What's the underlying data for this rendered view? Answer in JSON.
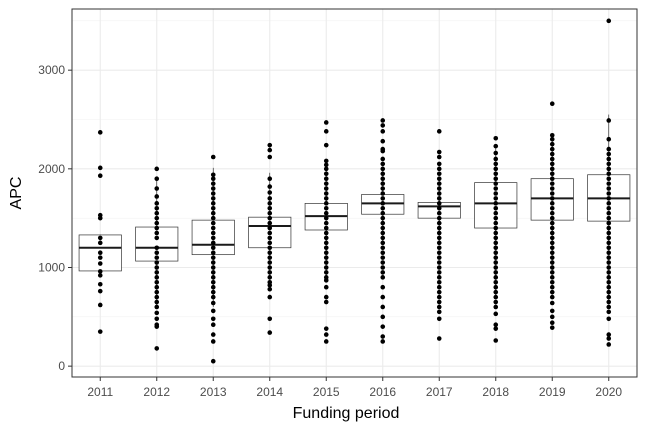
{
  "chart_data": {
    "type": "boxplot",
    "title": "",
    "xlabel": "Funding period",
    "ylabel": "APC",
    "categories": [
      "2011",
      "2012",
      "2013",
      "2014",
      "2015",
      "2016",
      "2017",
      "2018",
      "2019",
      "2020"
    ],
    "ylim": [
      -110,
      3620
    ],
    "yticks": [
      0,
      1000,
      2000,
      3000
    ],
    "grid": true,
    "legend": "none",
    "boxes": [
      {
        "category": "2011",
        "whisker_low": 960,
        "q1": 965,
        "median": 1200,
        "q3": 1330,
        "whisker_high": 1335
      },
      {
        "category": "2012",
        "whisker_low": 580,
        "q1": 1065,
        "median": 1200,
        "q3": 1410,
        "whisker_high": 1900
      },
      {
        "category": "2013",
        "whisker_low": 600,
        "q1": 1130,
        "median": 1230,
        "q3": 1480,
        "whisker_high": 2010
      },
      {
        "category": "2014",
        "whisker_low": 780,
        "q1": 1200,
        "median": 1420,
        "q3": 1510,
        "whisker_high": 1960
      },
      {
        "category": "2015",
        "whisker_low": 900,
        "q1": 1380,
        "median": 1520,
        "q3": 1650,
        "whisker_high": 2060
      },
      {
        "category": "2016",
        "whisker_low": 1230,
        "q1": 1540,
        "median": 1650,
        "q3": 1740,
        "whisker_high": 2010
      },
      {
        "category": "2017",
        "whisker_low": 1260,
        "q1": 1500,
        "median": 1620,
        "q3": 1660,
        "whisker_high": 1920
      },
      {
        "category": "2018",
        "whisker_low": 690,
        "q1": 1400,
        "median": 1650,
        "q3": 1860,
        "whisker_high": 2250
      },
      {
        "category": "2019",
        "whisker_low": 960,
        "q1": 1480,
        "median": 1700,
        "q3": 1900,
        "whisker_high": 2350
      },
      {
        "category": "2020",
        "whisker_low": 650,
        "q1": 1470,
        "median": 1700,
        "q3": 1940,
        "whisker_high": 2550
      }
    ],
    "points": [
      {
        "category": "2011",
        "values": [
          2370,
          2010,
          1930,
          1530,
          1500,
          1300,
          1250,
          1150,
          1100,
          1040,
          960,
          920,
          830,
          760,
          620,
          350
        ]
      },
      {
        "category": "2012",
        "values": [
          2000,
          1900,
          1800,
          1720,
          1650,
          1600,
          1550,
          1500,
          1450,
          1400,
          1350,
          1300,
          1200,
          1150,
          1100,
          1050,
          1000,
          950,
          900,
          850,
          800,
          750,
          700,
          650,
          600,
          540,
          480,
          420,
          400,
          180
        ]
      },
      {
        "category": "2013",
        "values": [
          2120,
          1940,
          1900,
          1850,
          1800,
          1750,
          1700,
          1650,
          1600,
          1550,
          1500,
          1450,
          1400,
          1350,
          1300,
          1250,
          1200,
          1150,
          1100,
          1050,
          1000,
          950,
          900,
          850,
          800,
          750,
          700,
          640,
          560,
          480,
          420,
          320,
          250,
          50
        ]
      },
      {
        "category": "2014",
        "values": [
          2240,
          2190,
          2120,
          1900,
          1820,
          1760,
          1700,
          1650,
          1600,
          1550,
          1500,
          1450,
          1400,
          1350,
          1300,
          1250,
          1200,
          1150,
          1100,
          1050,
          1000,
          950,
          900,
          850,
          820,
          780,
          700,
          480,
          340
        ]
      },
      {
        "category": "2015",
        "values": [
          2470,
          2380,
          2240,
          2080,
          2040,
          2000,
          1950,
          1900,
          1850,
          1800,
          1750,
          1700,
          1650,
          1600,
          1550,
          1500,
          1450,
          1400,
          1350,
          1300,
          1250,
          1200,
          1150,
          1100,
          1050,
          1000,
          950,
          900,
          870,
          800,
          700,
          650,
          380,
          320,
          250
        ]
      },
      {
        "category": "2016",
        "values": [
          2490,
          2440,
          2380,
          2280,
          2200,
          2180,
          2100,
          2050,
          2000,
          1950,
          1900,
          1850,
          1800,
          1750,
          1700,
          1650,
          1600,
          1550,
          1500,
          1450,
          1400,
          1350,
          1300,
          1250,
          1200,
          1150,
          1100,
          1050,
          1000,
          950,
          900,
          800,
          700,
          600,
          500,
          400,
          300,
          250
        ]
      },
      {
        "category": "2017",
        "values": [
          2380,
          2170,
          2120,
          2050,
          2000,
          1950,
          1900,
          1850,
          1800,
          1750,
          1700,
          1650,
          1600,
          1550,
          1500,
          1450,
          1400,
          1350,
          1300,
          1250,
          1200,
          1150,
          1100,
          1050,
          1000,
          950,
          900,
          850,
          800,
          750,
          700,
          650,
          600,
          550,
          480,
          280
        ]
      },
      {
        "category": "2018",
        "values": [
          2310,
          2230,
          2160,
          2100,
          2050,
          2000,
          1950,
          1900,
          1850,
          1800,
          1750,
          1700,
          1650,
          1600,
          1550,
          1500,
          1450,
          1400,
          1350,
          1300,
          1250,
          1200,
          1150,
          1100,
          1050,
          1000,
          950,
          900,
          850,
          800,
          750,
          700,
          650,
          600,
          530,
          420,
          380,
          260
        ]
      },
      {
        "category": "2019",
        "values": [
          2660,
          2340,
          2300,
          2250,
          2200,
          2150,
          2100,
          2050,
          2000,
          1950,
          1900,
          1850,
          1800,
          1750,
          1700,
          1650,
          1600,
          1550,
          1500,
          1450,
          1400,
          1350,
          1300,
          1250,
          1200,
          1150,
          1100,
          1050,
          1000,
          950,
          900,
          850,
          800,
          750,
          700,
          640,
          560,
          500,
          440,
          390
        ]
      },
      {
        "category": "2020",
        "values": [
          3500,
          2490,
          2300,
          2200,
          2150,
          2100,
          2050,
          2000,
          1950,
          1900,
          1850,
          1800,
          1750,
          1700,
          1650,
          1600,
          1550,
          1500,
          1450,
          1400,
          1350,
          1300,
          1250,
          1200,
          1150,
          1100,
          1050,
          1000,
          950,
          900,
          850,
          800,
          750,
          700,
          650,
          600,
          550,
          480,
          320,
          280,
          220
        ]
      }
    ]
  }
}
